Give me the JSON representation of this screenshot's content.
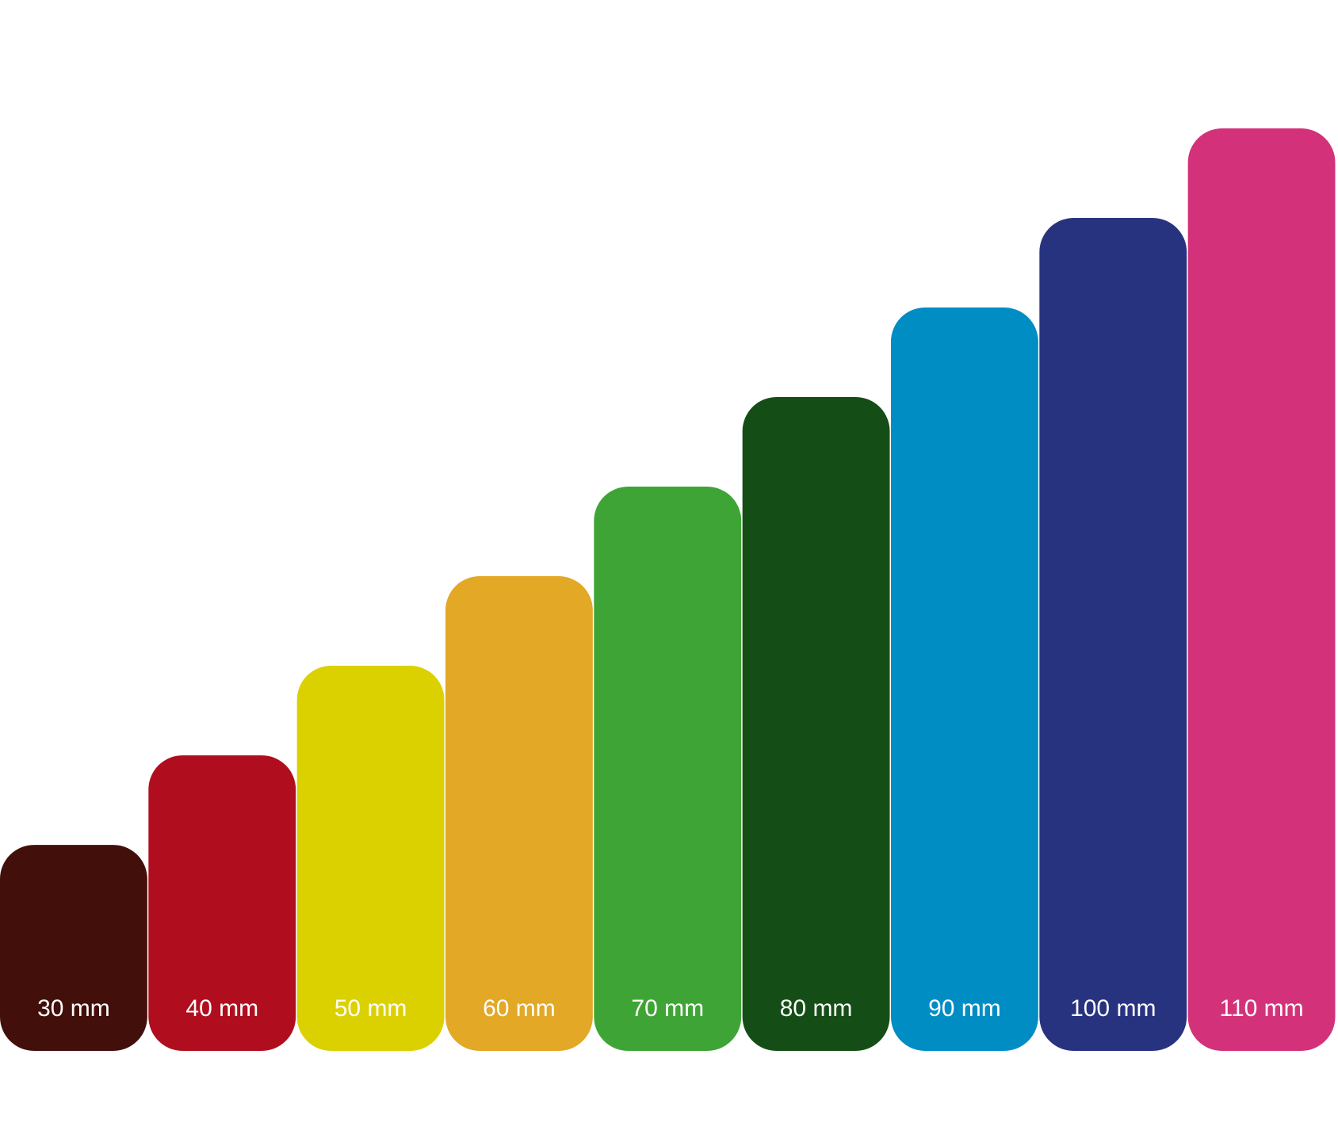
{
  "chart_data": {
    "type": "bar",
    "values": [
      30,
      40,
      50,
      60,
      70,
      80,
      90,
      100,
      110
    ],
    "value_labels": [
      "30 mm",
      "40 mm",
      "50 mm",
      "60 mm",
      "70 mm",
      "80 mm",
      "90 mm",
      "100 mm",
      "110 mm"
    ],
    "colors": [
      "#430f0a",
      "#b00e1e",
      "#dbd000",
      "#e2a826",
      "#3fa436",
      "#144e16",
      "#008dc4",
      "#283380",
      "#d3327a"
    ],
    "ylim": [
      7,
      120
    ]
  }
}
